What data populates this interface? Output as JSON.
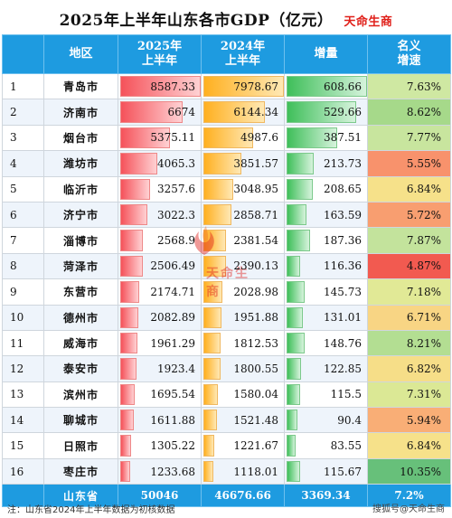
{
  "title": "2025年上半年山东各市GDP（亿元）",
  "brand": "天命生商",
  "headers": {
    "region": "地区",
    "gdp2025": "2025年\n上半年",
    "gdp2024": "2024年\n上半年",
    "increase": "增量",
    "rate": "名义\n增速"
  },
  "rows": [
    {
      "rank": "1",
      "region": "青岛市",
      "gdp2025": "8587.33",
      "gdp2024": "7978.67",
      "increase": "608.66",
      "rate": "7.63%",
      "rate_color": "#cfe8a2"
    },
    {
      "rank": "2",
      "region": "济南市",
      "gdp2025": "6674",
      "gdp2024": "6144.34",
      "increase": "529.66",
      "rate": "8.62%",
      "rate_color": "#a6d98a"
    },
    {
      "rank": "3",
      "region": "烟台市",
      "gdp2025": "5375.11",
      "gdp2024": "4987.6",
      "increase": "387.51",
      "rate": "7.77%",
      "rate_color": "#c8e59e"
    },
    {
      "rank": "4",
      "region": "潍坊市",
      "gdp2025": "4065.3",
      "gdp2024": "3851.57",
      "increase": "213.73",
      "rate": "5.55%",
      "rate_color": "#f8926c"
    },
    {
      "rank": "5",
      "region": "临沂市",
      "gdp2025": "3257.6",
      "gdp2024": "3048.95",
      "increase": "208.65",
      "rate": "6.84%",
      "rate_color": "#f6e18a"
    },
    {
      "rank": "6",
      "region": "济宁市",
      "gdp2025": "3022.3",
      "gdp2024": "2858.71",
      "increase": "163.59",
      "rate": "5.72%",
      "rate_color": "#f89e70"
    },
    {
      "rank": "7",
      "region": "淄博市",
      "gdp2025": "2568.9",
      "gdp2024": "2381.54",
      "increase": "187.36",
      "rate": "7.87%",
      "rate_color": "#c3e39c"
    },
    {
      "rank": "8",
      "region": "菏泽市",
      "gdp2025": "2506.49",
      "gdp2024": "2390.13",
      "increase": "116.36",
      "rate": "4.87%",
      "rate_color": "#f25a50"
    },
    {
      "rank": "9",
      "region": "东营市",
      "gdp2025": "2174.71",
      "gdp2024": "2028.98",
      "increase": "145.73",
      "rate": "7.18%",
      "rate_color": "#e1e996"
    },
    {
      "rank": "10",
      "region": "德州市",
      "gdp2025": "2082.89",
      "gdp2024": "1951.88",
      "increase": "131.01",
      "rate": "6.71%",
      "rate_color": "#f8d584"
    },
    {
      "rank": "11",
      "region": "威海市",
      "gdp2025": "1961.29",
      "gdp2024": "1812.53",
      "increase": "148.76",
      "rate": "8.21%",
      "rate_color": "#b3de92"
    },
    {
      "rank": "12",
      "region": "泰安市",
      "gdp2025": "1923.4",
      "gdp2024": "1800.55",
      "increase": "122.85",
      "rate": "6.82%",
      "rate_color": "#f6de88"
    },
    {
      "rank": "13",
      "region": "滨州市",
      "gdp2025": "1695.54",
      "gdp2024": "1580.04",
      "increase": "115.5",
      "rate": "7.31%",
      "rate_color": "#dbe895"
    },
    {
      "rank": "14",
      "region": "聊城市",
      "gdp2025": "1611.88",
      "gdp2024": "1521.48",
      "increase": "90.4",
      "rate": "5.94%",
      "rate_color": "#f9ae76"
    },
    {
      "rank": "15",
      "region": "日照市",
      "gdp2025": "1305.22",
      "gdp2024": "1221.67",
      "increase": "83.55",
      "rate": "6.84%",
      "rate_color": "#f6e18a"
    },
    {
      "rank": "16",
      "region": "枣庄市",
      "gdp2025": "1233.68",
      "gdp2024": "1118.01",
      "increase": "115.67",
      "rate": "10.35%",
      "rate_color": "#67c07a"
    }
  ],
  "bar_max": {
    "gdp2025": 8587.33,
    "gdp2024": 7978.67,
    "increase": 608.66
  },
  "total": {
    "region": "山东省",
    "gdp2025": "50046",
    "gdp2024": "46676.66",
    "increase": "3369.34",
    "rate": "7.2%"
  },
  "footnote": "注：山东省2024年上半年数据为初核数据",
  "watermark_text": "天命生商",
  "watermark_source": "搜狐号@天命生商"
}
